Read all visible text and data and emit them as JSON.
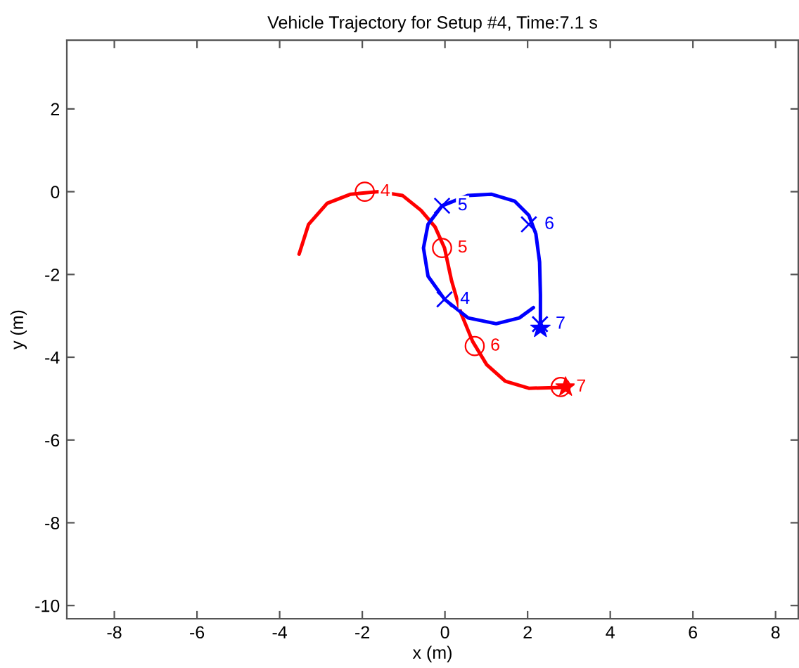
{
  "chart_data": {
    "type": "line",
    "title": "Vehicle Trajectory for Setup #4, Time:7.1 s",
    "xlabel": "x (m)",
    "ylabel": "y (m)",
    "xlim": [
      -9.15,
      8.55
    ],
    "ylim": [
      -10.32,
      3.66
    ],
    "xticks": [
      -8,
      -6,
      -4,
      -2,
      0,
      2,
      4,
      6,
      8
    ],
    "yticks": [
      -10,
      -8,
      -6,
      -4,
      -2,
      0,
      2
    ],
    "grid": false,
    "legend": false,
    "series": [
      {
        "color": "#ff0000",
        "marker": "none",
        "line_style": "solid",
        "x": [
          -3.53,
          -3.3,
          -2.85,
          -2.28,
          -1.6,
          -1.03,
          -0.58,
          -0.24,
          -0.01,
          0.16,
          0.39,
          0.67,
          1.01,
          1.46,
          2.03,
          2.82,
          2.95
        ],
        "values": [
          -1.51,
          -0.79,
          -0.28,
          -0.06,
          0,
          -0.09,
          -0.45,
          -0.85,
          -1.36,
          -2.15,
          -2.94,
          -3.62,
          -4.18,
          -4.58,
          -4.75,
          -4.73,
          -4.73
        ]
      },
      {
        "color": "#0000ff",
        "marker": "none",
        "line_style": "solid",
        "x": [
          2.14,
          1.8,
          1.24,
          0.56,
          -0.01,
          -0.41,
          -0.52,
          -0.41,
          -0.07,
          0.56,
          1.12,
          1.69,
          2.03,
          2.2,
          2.29,
          2.31,
          2.31
        ],
        "values": [
          -2.8,
          -3.05,
          -3.19,
          -3.05,
          -2.6,
          -2.04,
          -1.36,
          -0.79,
          -0.34,
          -0.09,
          -0.06,
          -0.23,
          -0.57,
          -1.02,
          -1.7,
          -2.49,
          -3.3
        ]
      },
      {
        "type": "scatter",
        "color": "#ff0000",
        "marker": "circle",
        "x": [
          -1.94,
          -0.07,
          0.72,
          2.8
        ],
        "values": [
          0,
          -1.36,
          -3.73,
          -4.72
        ]
      },
      {
        "type": "scatter",
        "color": "#0000ff",
        "marker": "cross",
        "x": [
          -0.01,
          -0.07,
          2.03,
          2.3
        ],
        "values": [
          -2.6,
          -0.34,
          -0.79,
          -3.2
        ]
      },
      {
        "type": "scatter",
        "color": "#ff0000",
        "marker": "star",
        "x": [
          2.92
        ],
        "values": [
          -4.72
        ]
      },
      {
        "type": "scatter",
        "color": "#0000ff",
        "marker": "star",
        "x": [
          2.31
        ],
        "values": [
          -3.3
        ]
      }
    ],
    "annotations": [
      {
        "text": "4",
        "x": -1.94,
        "y": 0
      },
      {
        "text": "5",
        "x": -0.07,
        "y": -1.36
      },
      {
        "text": "6",
        "x": 0.72,
        "y": -3.73
      },
      {
        "text": "7",
        "x": 2.8,
        "y": -4.72
      },
      {
        "text": "4",
        "x": -0.01,
        "y": -2.6
      },
      {
        "text": "5",
        "x": -0.07,
        "y": -0.34
      },
      {
        "text": "6",
        "x": 2.03,
        "y": -0.79
      },
      {
        "text": "7",
        "x": 2.3,
        "y": -3.2
      }
    ]
  }
}
